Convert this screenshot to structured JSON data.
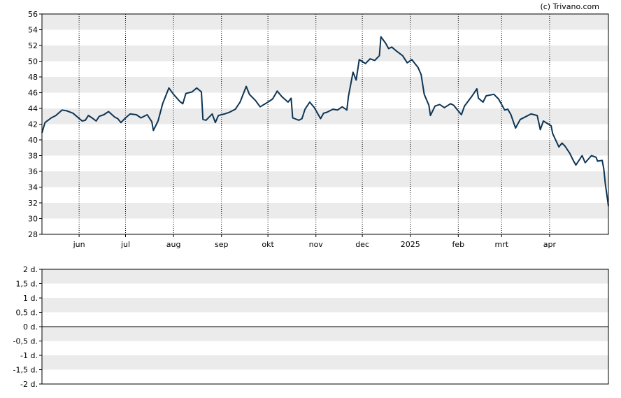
{
  "copyright": "(c) Trivano.com",
  "colors": {
    "line": "#0d3555",
    "band": "#ebebeb",
    "grid": "#000000",
    "frame": "#000000",
    "text": "#000000"
  },
  "chart_data": [
    {
      "type": "line",
      "ylim": [
        28,
        56
      ],
      "yticks": [
        28,
        30,
        32,
        34,
        36,
        38,
        40,
        42,
        44,
        46,
        48,
        50,
        52,
        54,
        56
      ],
      "ytick_labels": [
        "28",
        "30",
        "32",
        "34",
        "36",
        "38",
        "40",
        "42",
        "44",
        "46",
        "48",
        "50",
        "52",
        "54",
        "56"
      ],
      "xlim": [
        "2024-05-08",
        "2025-05-09"
      ],
      "xticks": [
        "2024-06-01",
        "2024-07-01",
        "2024-08-01",
        "2024-09-01",
        "2024-10-01",
        "2024-11-01",
        "2024-12-01",
        "2025-01-01",
        "2025-02-01",
        "2025-03-01",
        "2025-04-01"
      ],
      "xtick_labels": [
        "jun",
        "jul",
        "aug",
        "sep",
        "okt",
        "nov",
        "dec",
        "2025",
        "feb",
        "mrt",
        "apr"
      ],
      "grid": true,
      "series": [
        {
          "points": [
            [
              "2024-05-08",
              40.9
            ],
            [
              "2024-05-10",
              42.2
            ],
            [
              "2024-05-14",
              42.8
            ],
            [
              "2024-05-17",
              43.1
            ],
            [
              "2024-05-21",
              43.8
            ],
            [
              "2024-05-24",
              43.7
            ],
            [
              "2024-05-28",
              43.4
            ],
            [
              "2024-06-03",
              42.4
            ],
            [
              "2024-06-05",
              42.5
            ],
            [
              "2024-06-07",
              43.1
            ],
            [
              "2024-06-10",
              42.7
            ],
            [
              "2024-06-12",
              42.4
            ],
            [
              "2024-06-14",
              43.0
            ],
            [
              "2024-06-17",
              43.2
            ],
            [
              "2024-06-20",
              43.6
            ],
            [
              "2024-06-24",
              42.9
            ],
            [
              "2024-06-26",
              42.7
            ],
            [
              "2024-06-28",
              42.2
            ],
            [
              "2024-07-01",
              42.8
            ],
            [
              "2024-07-04",
              43.3
            ],
            [
              "2024-07-08",
              43.2
            ],
            [
              "2024-07-11",
              42.8
            ],
            [
              "2024-07-15",
              43.2
            ],
            [
              "2024-07-18",
              42.3
            ],
            [
              "2024-07-19",
              41.2
            ],
            [
              "2024-07-22",
              42.4
            ],
            [
              "2024-07-25",
              44.6
            ],
            [
              "2024-07-29",
              46.6
            ],
            [
              "2024-08-01",
              45.8
            ],
            [
              "2024-08-05",
              44.9
            ],
            [
              "2024-08-07",
              44.6
            ],
            [
              "2024-08-09",
              45.9
            ],
            [
              "2024-08-13",
              46.1
            ],
            [
              "2024-08-16",
              46.6
            ],
            [
              "2024-08-19",
              46.1
            ],
            [
              "2024-08-20",
              42.6
            ],
            [
              "2024-08-22",
              42.5
            ],
            [
              "2024-08-26",
              43.3
            ],
            [
              "2024-08-28",
              42.2
            ],
            [
              "2024-08-30",
              43.1
            ],
            [
              "2024-09-03",
              43.3
            ],
            [
              "2024-09-06",
              43.5
            ],
            [
              "2024-09-10",
              43.9
            ],
            [
              "2024-09-13",
              44.8
            ],
            [
              "2024-09-17",
              46.8
            ],
            [
              "2024-09-19",
              45.8
            ],
            [
              "2024-09-23",
              45.0
            ],
            [
              "2024-09-26",
              44.2
            ],
            [
              "2024-10-01",
              44.8
            ],
            [
              "2024-10-04",
              45.2
            ],
            [
              "2024-10-07",
              46.2
            ],
            [
              "2024-10-10",
              45.5
            ],
            [
              "2024-10-14",
              44.8
            ],
            [
              "2024-10-16",
              45.3
            ],
            [
              "2024-10-17",
              42.8
            ],
            [
              "2024-10-21",
              42.5
            ],
            [
              "2024-10-23",
              42.7
            ],
            [
              "2024-10-25",
              43.9
            ],
            [
              "2024-10-28",
              44.8
            ],
            [
              "2024-10-31",
              44.1
            ],
            [
              "2024-11-04",
              42.7
            ],
            [
              "2024-11-06",
              43.4
            ],
            [
              "2024-11-08",
              43.5
            ],
            [
              "2024-11-12",
              43.9
            ],
            [
              "2024-11-15",
              43.8
            ],
            [
              "2024-11-18",
              44.2
            ],
            [
              "2024-11-21",
              43.8
            ],
            [
              "2024-11-22",
              45.5
            ],
            [
              "2024-11-25",
              48.6
            ],
            [
              "2024-11-27",
              47.6
            ],
            [
              "2024-11-29",
              50.2
            ],
            [
              "2024-12-03",
              49.7
            ],
            [
              "2024-12-06",
              50.3
            ],
            [
              "2024-12-09",
              50.1
            ],
            [
              "2024-12-12",
              50.7
            ],
            [
              "2024-12-13",
              53.1
            ],
            [
              "2024-12-16",
              52.3
            ],
            [
              "2024-12-18",
              51.6
            ],
            [
              "2024-12-20",
              51.8
            ],
            [
              "2024-12-23",
              51.3
            ],
            [
              "2024-12-27",
              50.7
            ],
            [
              "2024-12-30",
              49.8
            ],
            [
              "2025-01-02",
              50.2
            ],
            [
              "2025-01-06",
              49.2
            ],
            [
              "2025-01-08",
              48.3
            ],
            [
              "2025-01-10",
              45.8
            ],
            [
              "2025-01-13",
              44.4
            ],
            [
              "2025-01-14",
              43.1
            ],
            [
              "2025-01-17",
              44.3
            ],
            [
              "2025-01-20",
              44.5
            ],
            [
              "2025-01-23",
              44.1
            ],
            [
              "2025-01-27",
              44.6
            ],
            [
              "2025-01-29",
              44.4
            ],
            [
              "2025-02-03",
              43.2
            ],
            [
              "2025-02-05",
              44.3
            ],
            [
              "2025-02-10",
              45.6
            ],
            [
              "2025-02-13",
              46.5
            ],
            [
              "2025-02-14",
              45.3
            ],
            [
              "2025-02-17",
              44.8
            ],
            [
              "2025-02-19",
              45.6
            ],
            [
              "2025-02-24",
              45.8
            ],
            [
              "2025-02-27",
              45.2
            ],
            [
              "2025-03-03",
              43.8
            ],
            [
              "2025-03-05",
              43.9
            ],
            [
              "2025-03-07",
              43.2
            ],
            [
              "2025-03-10",
              41.5
            ],
            [
              "2025-03-13",
              42.6
            ],
            [
              "2025-03-17",
              43.0
            ],
            [
              "2025-03-20",
              43.3
            ],
            [
              "2025-03-24",
              43.1
            ],
            [
              "2025-03-26",
              41.3
            ],
            [
              "2025-03-28",
              42.4
            ],
            [
              "2025-04-02",
              41.8
            ],
            [
              "2025-04-03",
              40.8
            ],
            [
              "2025-04-07",
              39.1
            ],
            [
              "2025-04-09",
              39.6
            ],
            [
              "2025-04-11",
              39.2
            ],
            [
              "2025-04-14",
              38.3
            ],
            [
              "2025-04-16",
              37.5
            ],
            [
              "2025-04-18",
              36.8
            ],
            [
              "2025-04-22",
              38.0
            ],
            [
              "2025-04-24",
              37.1
            ],
            [
              "2025-04-28",
              38.0
            ],
            [
              "2025-05-01",
              37.8
            ],
            [
              "2025-05-02",
              37.3
            ],
            [
              "2025-05-05",
              37.4
            ],
            [
              "2025-05-06",
              36.3
            ],
            [
              "2025-05-07",
              34.4
            ],
            [
              "2025-05-09",
              31.6
            ]
          ]
        }
      ]
    },
    {
      "type": "bar",
      "ylim": [
        -2,
        2
      ],
      "yticks": [
        -2,
        -1.5,
        -1,
        -0.5,
        0,
        0.5,
        1,
        1.5,
        2
      ],
      "ytick_labels": [
        "-2 d.",
        "-1,5 d.",
        "-1 d.",
        "-0,5 d.",
        "0 d.",
        "0,5 d.",
        "1 d.",
        "1,5 d.",
        "2 d."
      ],
      "zero_line": 0,
      "grid": true,
      "values": []
    }
  ]
}
